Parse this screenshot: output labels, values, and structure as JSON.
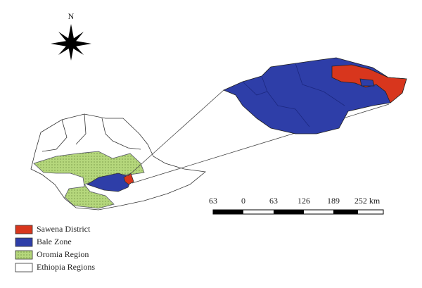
{
  "north_label": "N",
  "scale_bar": {
    "labels": [
      "63",
      "0",
      "63",
      "126",
      "189",
      "252 km"
    ]
  },
  "legend": {
    "items": [
      "Sawena District",
      "Bale Zone",
      "Oromia Region",
      "Ethiopia Regions"
    ]
  }
}
